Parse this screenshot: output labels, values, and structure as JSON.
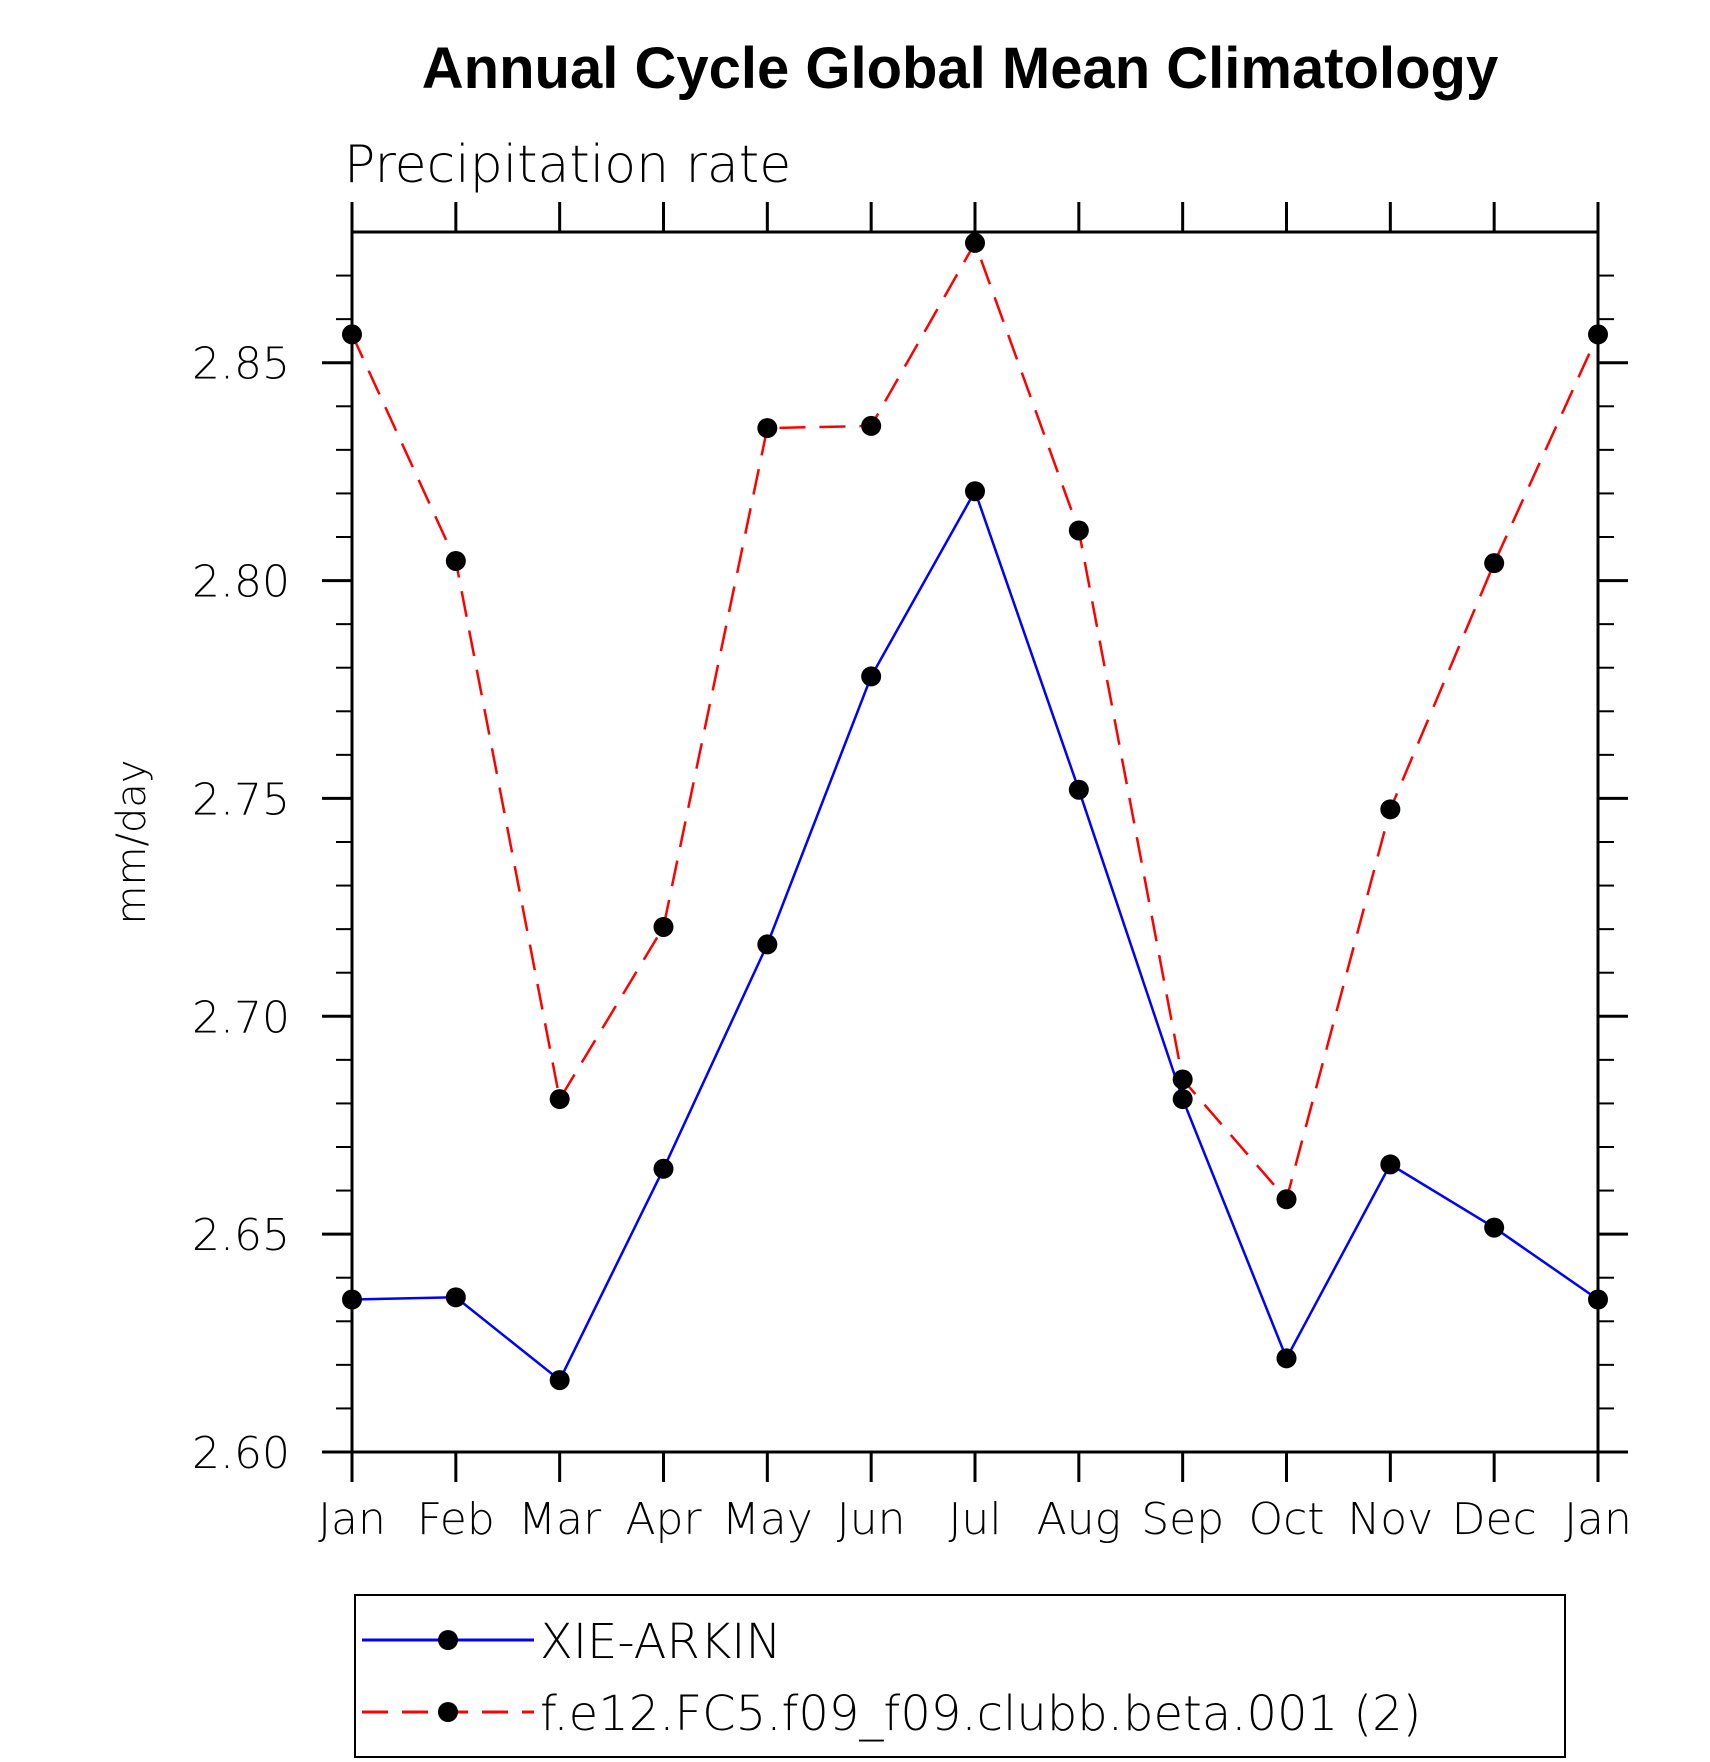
{
  "chart_data": {
    "type": "line",
    "title": "Annual Cycle Global Mean Climatology",
    "subtitle": "Precipitation rate",
    "ylabel": "mm/day",
    "xlabel": "",
    "categories": [
      "Jan",
      "Feb",
      "Mar",
      "Apr",
      "May",
      "Jun",
      "Jul",
      "Aug",
      "Sep",
      "Oct",
      "Nov",
      "Dec",
      "Jan"
    ],
    "ylim": [
      2.6,
      2.88
    ],
    "yticks": [
      2.6,
      2.65,
      2.7,
      2.75,
      2.8,
      2.85
    ],
    "ytick_labels": [
      "2.60",
      "2.65",
      "2.70",
      "2.75",
      "2.80",
      "2.85"
    ],
    "grid": false,
    "legend_position": "bottom",
    "series": [
      {
        "name": "XIE-ARKIN",
        "color": "#0000ff",
        "line_style": "solid",
        "marker": "filled-circle",
        "values": [
          2.635,
          2.6355,
          2.6165,
          2.665,
          2.7165,
          2.778,
          2.8205,
          2.752,
          2.681,
          2.6215,
          2.666,
          2.6515,
          2.635
        ]
      },
      {
        "name": "f.e12.FC5.f09_f09.clubb.beta.001 (2)",
        "color": "#ff0000",
        "line_style": "dashed",
        "marker": "filled-circle",
        "values": [
          2.8565,
          2.8045,
          2.681,
          2.7205,
          2.835,
          2.8355,
          2.8775,
          2.8115,
          2.6855,
          2.658,
          2.7475,
          2.804,
          2.8565
        ]
      }
    ]
  }
}
